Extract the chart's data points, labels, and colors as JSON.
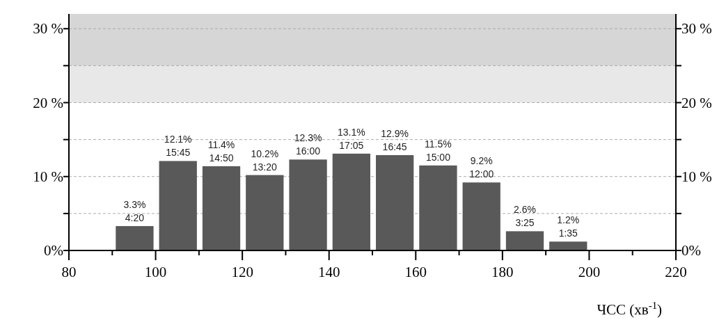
{
  "chart_data": {
    "type": "histogram",
    "bins": [
      90,
      100,
      110,
      120,
      130,
      140,
      150,
      160,
      170,
      180,
      190,
      200
    ],
    "values": [
      3.3,
      12.1,
      11.4,
      10.2,
      12.3,
      13.1,
      12.9,
      11.5,
      9.2,
      2.6,
      1.2
    ],
    "value_labels": [
      "3.3%",
      "12.1%",
      "11.4%",
      "10.2%",
      "12.3%",
      "13.1%",
      "12.9%",
      "11.5%",
      "9.2%",
      "2.6%",
      "1.2%"
    ],
    "annotations": [
      {
        "text": "4:20",
        "x": 95,
        "y": 3.3
      },
      {
        "text": "15:45",
        "x": 105,
        "y": 12.1
      },
      {
        "text": "14:50",
        "x": 115,
        "y": 11.4
      },
      {
        "text": "13:20",
        "x": 125,
        "y": 10.2
      },
      {
        "text": "16:00",
        "x": 135,
        "y": 12.3
      },
      {
        "text": "17:05",
        "x": 145,
        "y": 13.1
      },
      {
        "text": "16:45",
        "x": 155,
        "y": 12.9
      },
      {
        "text": "15:00",
        "x": 165,
        "y": 11.5
      },
      {
        "text": "12:00",
        "x": 175,
        "y": 9.2
      },
      {
        "text": "3:25",
        "x": 185,
        "y": 2.6
      },
      {
        "text": "1:35",
        "x": 195,
        "y": 1.2
      }
    ],
    "color": "#595959",
    "xlabel": "ЧСС (хв$^{-1}$)",
    "xlim": [
      80,
      220
    ],
    "xticks": [
      80,
      {
        "value": 90,
        "label": null
      },
      100,
      {
        "value": 110,
        "label": null
      },
      120,
      {
        "value": 130,
        "label": null
      },
      140,
      {
        "value": 150,
        "label": null
      },
      160,
      {
        "value": 170,
        "label": null
      },
      180,
      {
        "value": 190,
        "label": null
      },
      200,
      {
        "value": 210,
        "label": null
      },
      220
    ],
    "ylim": [
      0,
      32
    ],
    "yticks": [
      {
        "value": 0,
        "label": "0%"
      },
      {
        "value": 5,
        "label": null
      },
      {
        "value": 10,
        "label": "10 %"
      },
      {
        "value": 15,
        "label": null
      },
      {
        "value": 20,
        "label": "20 %"
      },
      {
        "value": 25,
        "label": null
      },
      {
        "value": 30,
        "label": "30 %"
      }
    ],
    "y2lim": [
      0,
      32
    ],
    "y2ticks": [
      {
        "value": 0,
        "label": "0%"
      },
      {
        "value": 5,
        "label": null
      },
      {
        "value": 10,
        "label": "10 %"
      },
      {
        "value": 15,
        "label": null
      },
      {
        "value": 20,
        "label": "20 %"
      },
      {
        "value": 25,
        "label": null
      },
      {
        "value": 30,
        "label": "30 %"
      }
    ],
    "bands": [
      {
        "axis": "y",
        "from": 20,
        "to": 25,
        "color": "#e8e8e8"
      },
      {
        "axis": "y",
        "from": 25,
        "to": 32,
        "color": "#d6d6d6"
      }
    ],
    "grid": "y",
    "line_style": "dashed"
  }
}
